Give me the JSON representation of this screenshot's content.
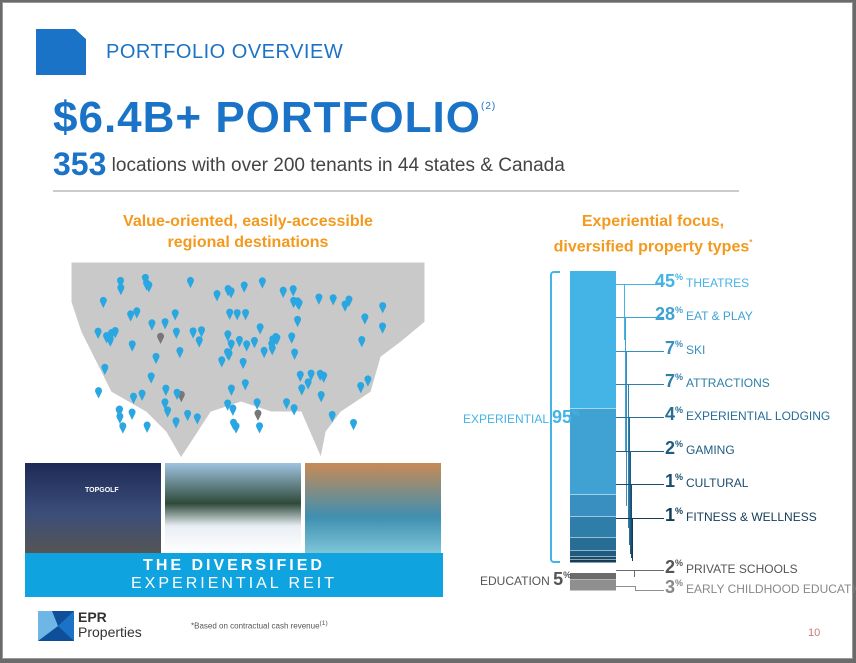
{
  "header": {
    "section": "PORTFOLIO OVERVIEW",
    "headline": "$6.4B+ PORTFOLIO",
    "headline_note": "(2)",
    "locations_count": "353",
    "locations_text": "locations with over 200 tenants in 44 states & Canada"
  },
  "left": {
    "heading_line1": "Value-oriented, easily-accessible",
    "heading_line2": "regional destinations",
    "photo_sign": "TOPGOLF",
    "banner_line1": "THE DIVERSIFIED",
    "banner_line2": "EXPERIENTIAL REIT"
  },
  "right": {
    "heading_line1": "Experiential focus,",
    "heading_line2": "diversified property types",
    "heading_mark": "*"
  },
  "chart_data": {
    "type": "bar",
    "stacked": true,
    "groups": [
      {
        "name": "EXPERIENTIAL",
        "value": 95
      },
      {
        "name": "EDUCATION",
        "value": 5
      }
    ],
    "categories": [
      "THEATRES",
      "EAT & PLAY",
      "SKI",
      "ATTRACTIONS",
      "EXPERIENTIAL LODGING",
      "GAMING",
      "CULTURAL",
      "FITNESS & WELLNESS",
      "PRIVATE SCHOOLS",
      "EARLY CHILDHOOD EDUCATION"
    ],
    "values": [
      45,
      28,
      7,
      7,
      4,
      2,
      1,
      1,
      2,
      3
    ],
    "colors": [
      "#44b3e6",
      "#3fa2d3",
      "#398fc0",
      "#2f7ea9",
      "#276d94",
      "#1f5c80",
      "#194c6c",
      "#143c57",
      "#6b6b6b",
      "#8f8f8f"
    ],
    "label_colors": [
      "#44b3e6",
      "#3fa2d3",
      "#398fc0",
      "#2f7ea9",
      "#276d94",
      "#1f5c80",
      "#194c6c",
      "#143c57",
      "#555555",
      "#888888"
    ]
  },
  "footer": {
    "brand_line1": "EPR",
    "brand_line2": "Properties",
    "footnote": "*Based on contractual cash revenue",
    "footnote_ref": "(1)",
    "page": "10"
  },
  "colors": {
    "brand_blue": "#1a73c6",
    "accent_orange": "#f39a1e",
    "banner_blue": "#0fa3e0"
  }
}
